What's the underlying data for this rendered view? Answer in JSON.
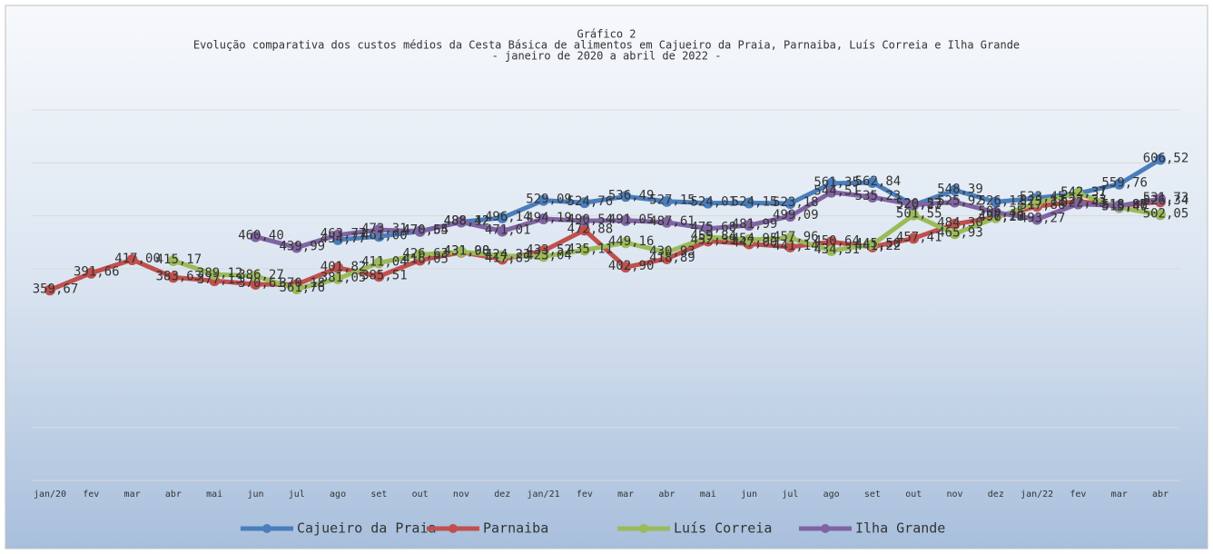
{
  "chart_data": {
    "type": "line",
    "title": "Gráfico 2",
    "subtitle": [
      "Evolução comparativa dos custos médios da Cesta Básica de alimentos em Cajueiro da Praia, Parnaiba, Luís Correia e Ilha Grande",
      "- janeiro de 2020 a abril de 2022 -"
    ],
    "categories": [
      "jan/20",
      "fev",
      "mar",
      "abr",
      "mai",
      "jun",
      "jul",
      "ago",
      "set",
      "out",
      "nov",
      "dez",
      "jan/21",
      "fev",
      "mar",
      "abr",
      "mai",
      "jun",
      "jul",
      "ago",
      "set",
      "out",
      "nov",
      "dez",
      "jan/22",
      "fev",
      "mar",
      "abr"
    ],
    "ylim": [
      0,
      700
    ],
    "yticks": [
      0,
      100,
      200,
      300,
      400,
      500,
      600,
      700
    ],
    "grid": true,
    "legend": "bottom",
    "series": [
      {
        "name": "Cajueiro da Praia",
        "color": "#4a7ebb",
        "values": [
          null,
          null,
          null,
          null,
          null,
          null,
          null,
          454.77,
          461.0,
          470.54,
          488.42,
          496.14,
          529.09,
          524.76,
          536.49,
          527.15,
          524.01,
          524.15,
          523.18,
          561.35,
          562.84,
          520.23,
          548.39,
          526.12,
          533.45,
          542.31,
          559.76,
          606.52
        ],
        "value_labels": [
          null,
          null,
          null,
          null,
          null,
          null,
          null,
          "454,77",
          "461,00",
          "470,54",
          "488,42",
          "496,14",
          "529,09",
          "524,76",
          "536,49",
          "527,15",
          "524,01",
          "524,15",
          "523,18",
          "561,35",
          "562,84",
          "520,23",
          "548,39",
          "526,12",
          "533,45",
          "542,31",
          "559,76",
          "606,52"
        ]
      },
      {
        "name": "Parnaiba",
        "color": "#c0504d",
        "values": [
          359.67,
          391.66,
          417.0,
          383.63,
          377.13,
          370.61,
          370.18,
          401.82,
          385.51,
          416.05,
          431.08,
          417.89,
          433.52,
          472.88,
          402.9,
          418.89,
          452.39,
          447.0,
          441.14,
          450.64,
          441.22,
          457.41,
          484.3,
          497.12,
          517.86,
          527.33,
          518.98,
          526.34
        ],
        "value_labels": [
          "359,67",
          "391,66",
          "417,00",
          "383,63",
          "377,13",
          "370,61",
          "370,18",
          "401,82",
          "385,51",
          "416,05",
          "431,08",
          "417,89",
          "433,52",
          "472,88",
          "402,90",
          "418,89",
          "452,39",
          "447,00",
          "441,14",
          "450,64",
          "441,22",
          "457,41",
          "484,30",
          "497,12",
          "517,86",
          "527,33",
          "518,98",
          "526,34"
        ]
      },
      {
        "name": "Luís Correia",
        "color": "#9bbb59",
        "values": [
          null,
          null,
          null,
          415.17,
          389.12,
          386.27,
          361.76,
          381.05,
          411.04,
          426.63,
          431.9,
          424.23,
          423.04,
          435.11,
          449.16,
          430.93,
          459.84,
          454.95,
          457.96,
          434.31,
          445.5,
          501.55,
          465.93,
          496.2,
          525.11,
          542.37,
          515.4,
          502.05
        ],
        "value_labels": [
          null,
          null,
          null,
          "415,17",
          "389,12",
          "386,27",
          "361,76",
          "381,05",
          "411,04",
          "426,63",
          "431,90",
          "424,23",
          "423,04",
          "435,11",
          "449,16",
          "430,93",
          "459,84",
          "454,95",
          "457,96",
          "434,31",
          "445,50",
          "501,55",
          "465,93",
          "496,20",
          "525,11",
          "542,37",
          "515,40",
          "502,05"
        ]
      },
      {
        "name": "Ilha Grande",
        "color": "#8064a2",
        "values": [
          null,
          null,
          null,
          null,
          null,
          460.4,
          439.99,
          463.77,
          473.31,
          470.65,
          488.12,
          471.01,
          494.19,
          490.54,
          491.05,
          487.61,
          475.68,
          481.99,
          499.09,
          544.51,
          535.23,
          520.57,
          525.92,
          506.35,
          493.27,
          522.43,
          518.87,
          531.73
        ],
        "value_labels": [
          null,
          null,
          null,
          null,
          null,
          "460,40",
          "439,99",
          "463,77",
          "473,31",
          "470,65",
          "488,12",
          "471,01",
          "494,19",
          "490,54",
          "491,05",
          "487,61",
          "475,68",
          "481,99",
          "499,09",
          "544,51",
          "535,23",
          "520,57",
          "525,92",
          "506,35",
          "493,27",
          "522,43",
          "518,87",
          "531,73"
        ]
      }
    ]
  }
}
